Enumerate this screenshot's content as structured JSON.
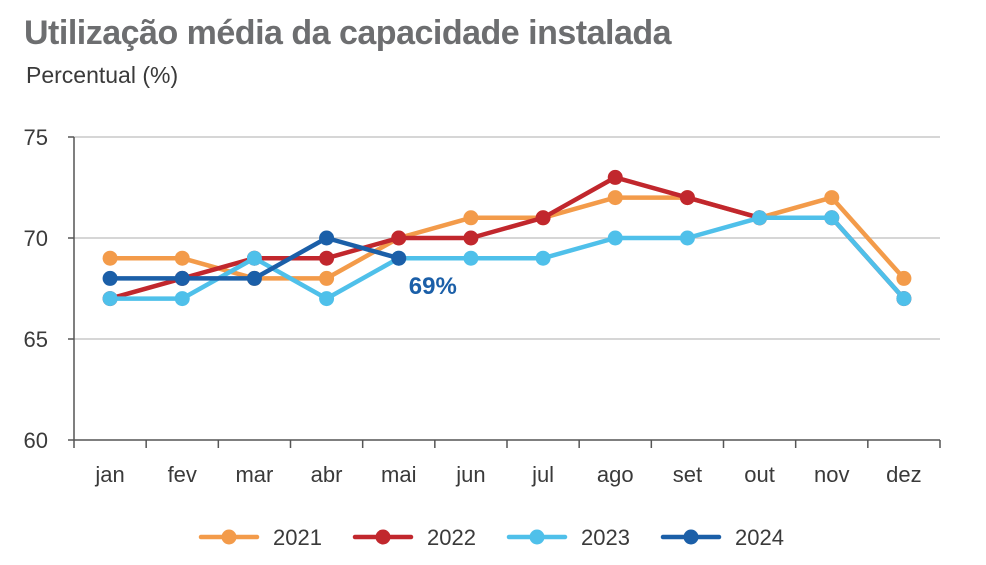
{
  "chart_data": {
    "type": "line",
    "title": "Utilização média da capacidade instalada",
    "subtitle": "Percentual (%)",
    "categories": [
      "jan",
      "fev",
      "mar",
      "abr",
      "mai",
      "jun",
      "jul",
      "ago",
      "set",
      "out",
      "nov",
      "dez"
    ],
    "ylim": [
      60,
      75
    ],
    "yticks": [
      60,
      65,
      70,
      75
    ],
    "grid": true,
    "legend_position": "bottom",
    "series": [
      {
        "name": "2021",
        "color": "#f39b4a",
        "values": [
          69,
          69,
          68,
          68,
          70,
          71,
          71,
          72,
          72,
          71,
          72,
          68
        ]
      },
      {
        "name": "2022",
        "color": "#c1272d",
        "values": [
          67,
          68,
          69,
          69,
          70,
          70,
          71,
          73,
          72,
          71,
          71,
          67
        ]
      },
      {
        "name": "2023",
        "color": "#4fc0ea",
        "values": [
          67,
          67,
          69,
          67,
          69,
          69,
          69,
          70,
          70,
          71,
          71,
          67
        ]
      },
      {
        "name": "2024",
        "color": "#1b5fa8",
        "values": [
          68,
          68,
          68,
          70,
          69,
          null,
          null,
          null,
          null,
          null,
          null,
          null
        ]
      }
    ],
    "annotations": [
      {
        "text": "69%",
        "category": "mai",
        "series": "2024",
        "color": "#1b5fa8"
      }
    ]
  }
}
